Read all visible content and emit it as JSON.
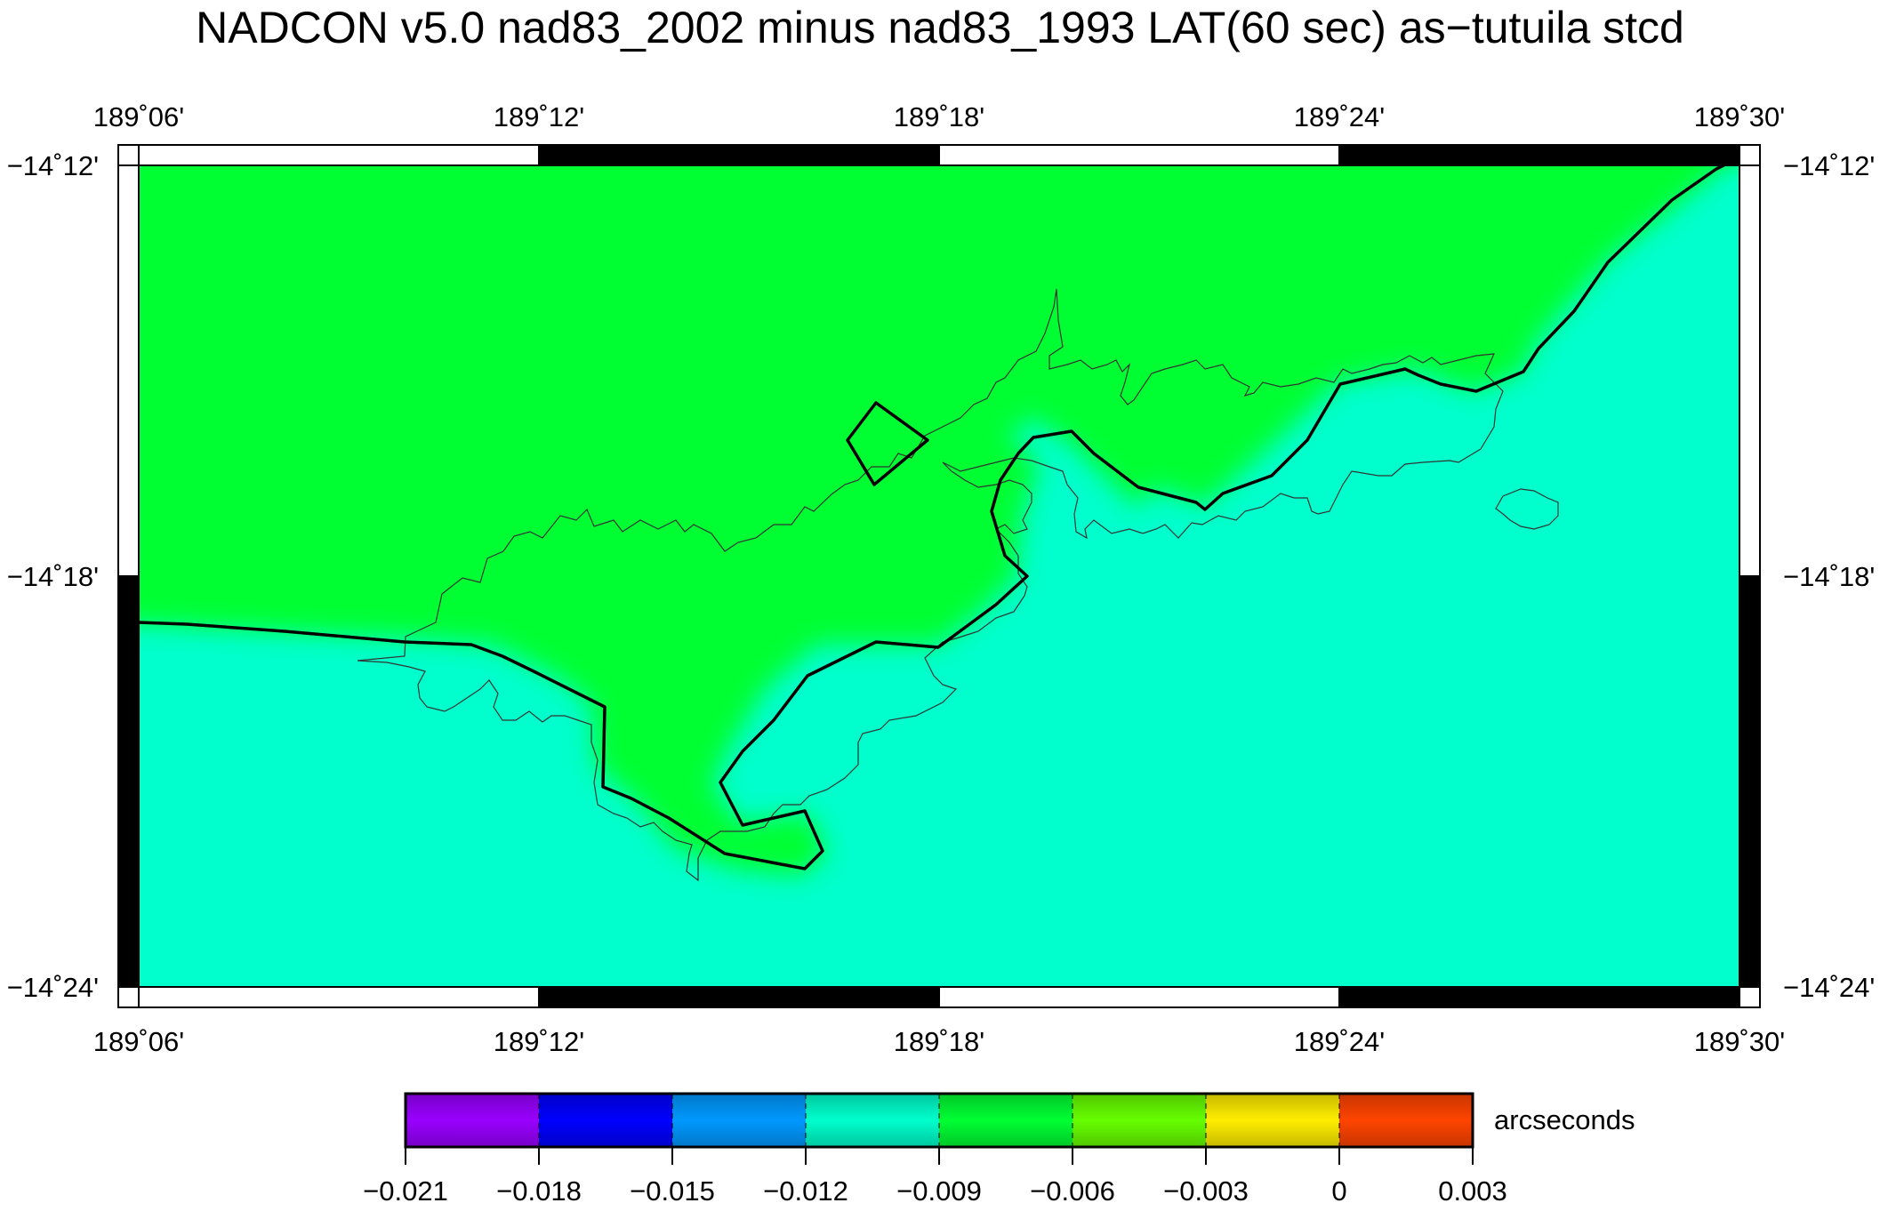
{
  "title": "NADCON v5.0 nad83_2002 minus nad83_1993 LAT(60 sec) as−tutuila stcd",
  "map": {
    "lon_labels": [
      "189˚06'",
      "189˚12'",
      "189˚18'",
      "189˚24'",
      "189˚30'"
    ],
    "lat_labels": [
      "−14˚12'",
      "−14˚18'",
      "−14˚24'"
    ],
    "colors": {
      "land_field": "#00ff33",
      "sea_field": "#00ffcc",
      "frame_dark": "#000000",
      "frame_light": "#ffffff"
    }
  },
  "colorbar": {
    "units_label": "arcseconds",
    "tick_labels": [
      "−0.021",
      "−0.018",
      "−0.015",
      "−0.012",
      "−0.009",
      "−0.006",
      "−0.003",
      "0",
      "0.003"
    ],
    "bins": [
      {
        "color": "#9900ff"
      },
      {
        "color": "#0000ff"
      },
      {
        "color": "#0099ff"
      },
      {
        "color": "#00ffcc"
      },
      {
        "color": "#00ff33"
      },
      {
        "color": "#66ff00"
      },
      {
        "color": "#ffee00"
      },
      {
        "color": "#ff4400"
      }
    ]
  },
  "chart_data": {
    "type": "heatmap",
    "title": "NADCON v5.0 nad83_2002 minus nad83_1993 LAT(60 sec) as−tutuila stcd",
    "x_range_deg": [
      189.1,
      189.5
    ],
    "y_range_deg": [
      -14.4,
      -14.2
    ],
    "colorbar": {
      "label": "arcseconds",
      "ticks": [
        -0.021,
        -0.018,
        -0.015,
        -0.012,
        -0.009,
        -0.006,
        -0.003,
        0,
        0.003
      ],
      "range": [
        -0.021,
        0.003
      ]
    },
    "dominant_values": {
      "north_region": -0.0075,
      "south_region": -0.0105
    }
  }
}
